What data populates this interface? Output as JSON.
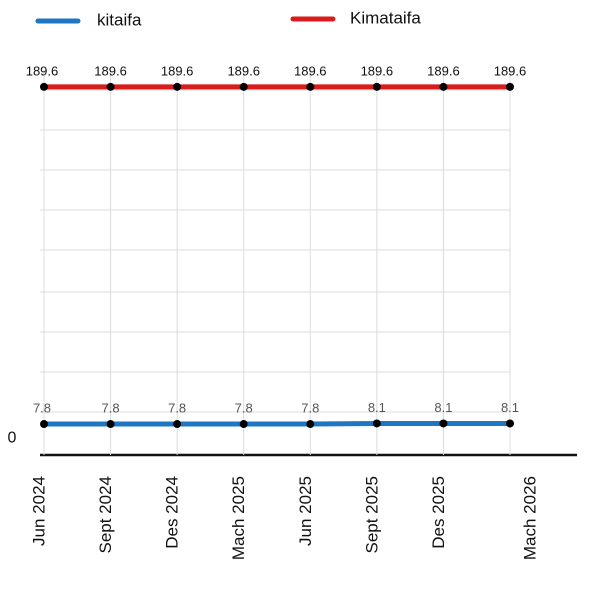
{
  "chart_data": {
    "type": "line",
    "categories": [
      "Jun 2024",
      "Sept 2024",
      "Des 2024",
      "Mach 2025",
      "Jun 2025",
      "Sept 2025",
      "Des 2025",
      "Mach 2026"
    ],
    "series": [
      {
        "name": "kitaifa",
        "color": "#1f77c4",
        "values": [
          7.8,
          7.8,
          7.8,
          7.8,
          7.8,
          8.1,
          8.1,
          8.1
        ]
      },
      {
        "name": "Kimataifa",
        "color": "#d81b1b",
        "values": [
          189.6,
          189.6,
          189.6,
          189.6,
          189.6,
          189.6,
          189.6,
          189.6
        ]
      }
    ],
    "ylim": [
      0,
      210
    ],
    "yticks": [
      0
    ],
    "grid": true
  }
}
